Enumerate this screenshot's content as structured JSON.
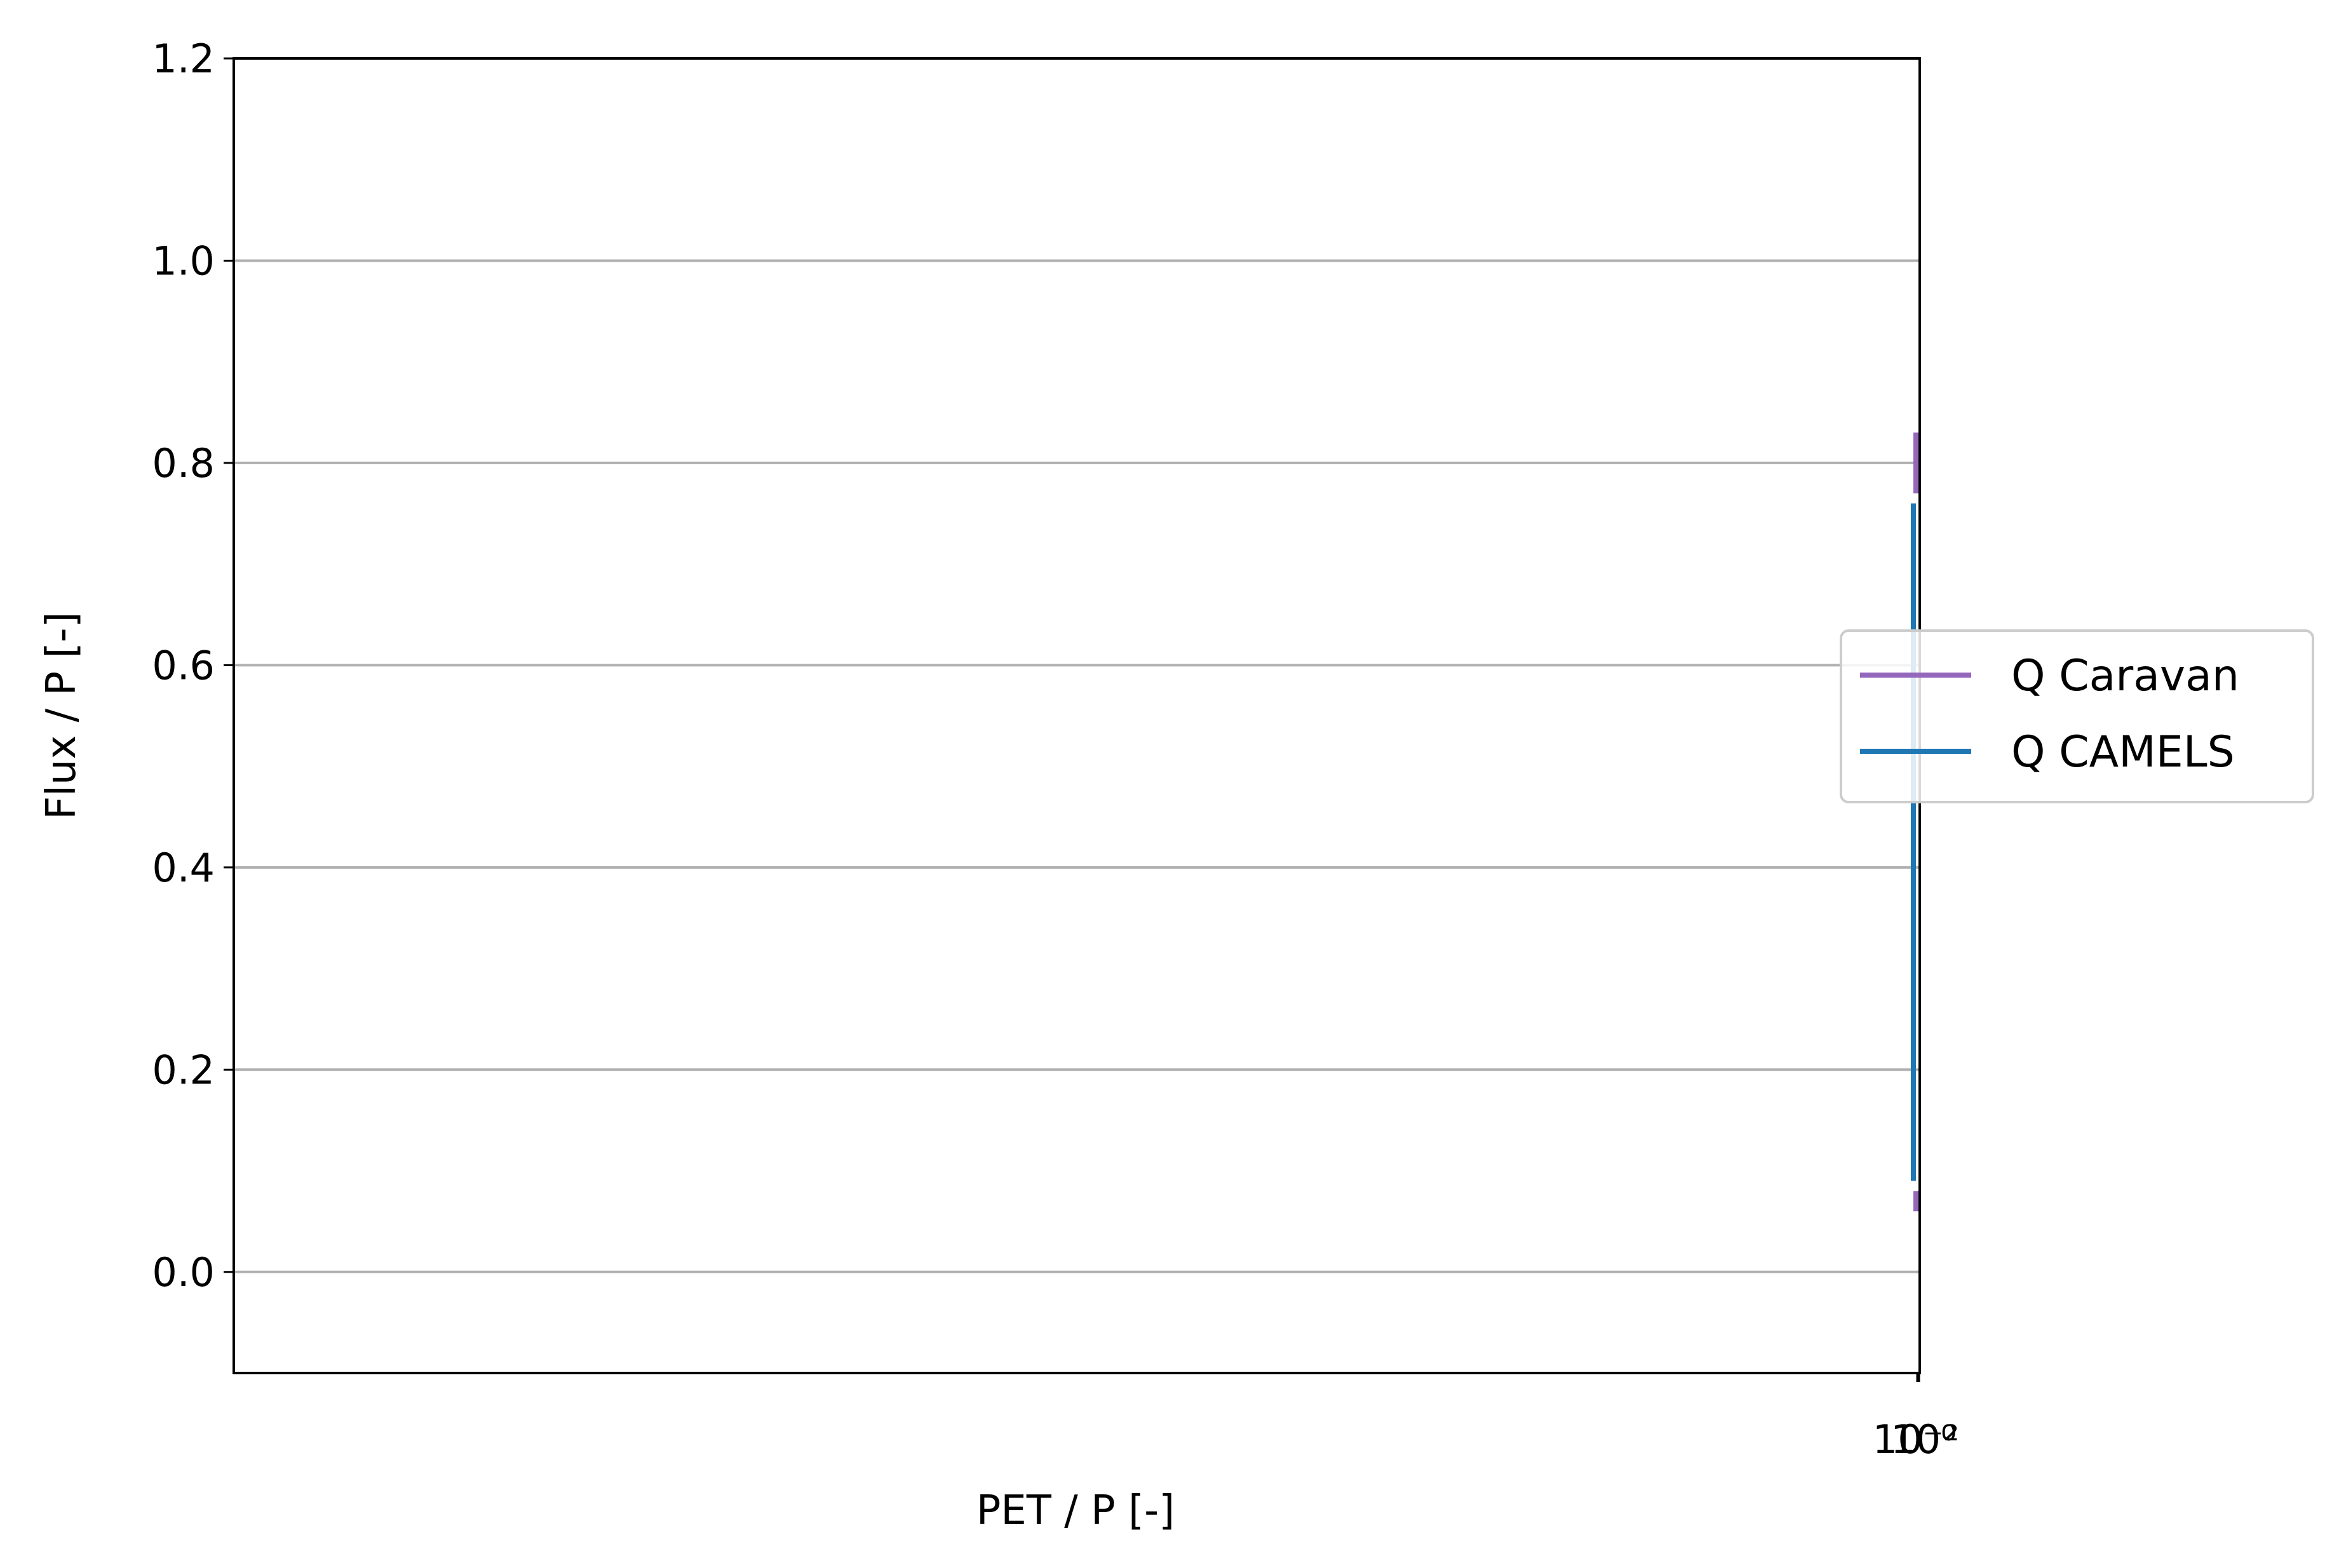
{
  "chart_data": {
    "type": "line",
    "title": "",
    "xlabel": "PET / P [-]",
    "ylabel": "Flux / P [-]",
    "xscale": "log",
    "ylim": [
      -0.1,
      1.2
    ],
    "yticks": [
      0.0,
      0.2,
      0.4,
      0.6,
      0.8,
      1.0,
      1.2
    ],
    "ytick_labels": [
      "0.0",
      "0.2",
      "0.4",
      "0.6",
      "0.8",
      "1.0",
      "1.2"
    ],
    "xtick_labels": [
      "10⁻²",
      "10⁰"
    ],
    "grid": {
      "y": true,
      "x": false
    },
    "legend_position": "right",
    "series": [
      {
        "name": "Q Caravan",
        "color": "#9467bd",
        "segments": [
          [
            0.77,
            0.83
          ],
          [
            0.06,
            0.08
          ]
        ]
      },
      {
        "name": "Q CAMELS",
        "color": "#1f77b4",
        "segments": [
          [
            0.09,
            0.76
          ]
        ]
      }
    ]
  }
}
